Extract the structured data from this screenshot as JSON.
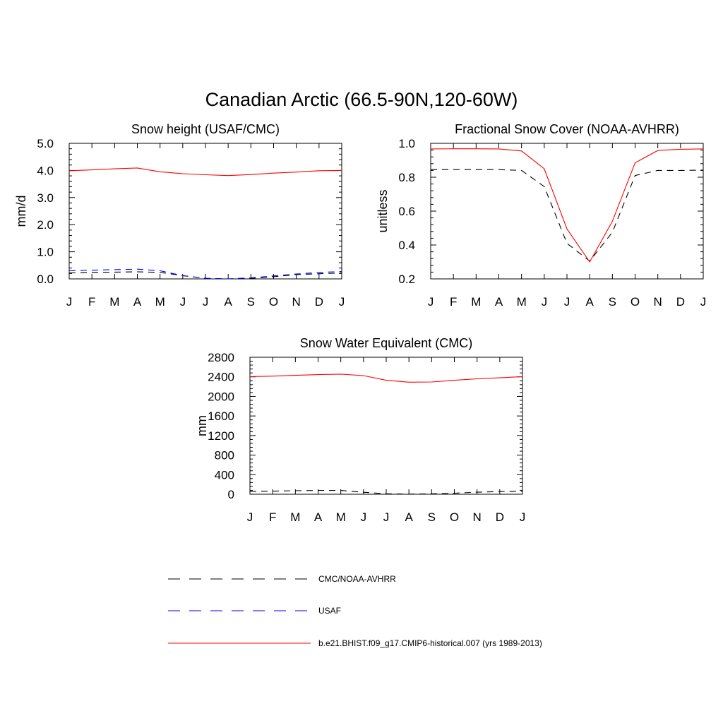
{
  "figure": {
    "title": "Canadian Arctic (66.5-90N,120-60W)"
  },
  "legend": {
    "items": [
      {
        "label": "CMC/NOAA-AVHRR",
        "color": "#000000",
        "style": "dashed"
      },
      {
        "label": "USAF",
        "color": "#0000ff",
        "style": "dashed"
      },
      {
        "label": "b.e21.BHIST.f09_g17.CMIP6-historical.007 (yrs 1989-2013)",
        "color": "#ff0000",
        "style": "solid"
      }
    ]
  },
  "chart_data": [
    {
      "type": "line",
      "title": "Snow height (USAF/CMC)",
      "xlabel": "",
      "ylabel": "mm/d",
      "categories": [
        "J",
        "F",
        "M",
        "A",
        "M",
        "J",
        "J",
        "A",
        "S",
        "O",
        "N",
        "D",
        "J"
      ],
      "ylim": [
        0,
        5
      ],
      "yticks": [
        0,
        1,
        2,
        3,
        4,
        5
      ],
      "ytick_labels": [
        "0.0",
        "1.0",
        "2.0",
        "3.0",
        "4.0",
        "5.0"
      ],
      "grid": false,
      "series": [
        {
          "name": "CMC/NOAA-AVHRR",
          "color": "#000000",
          "style": "dashed",
          "values": [
            0.22,
            0.24,
            0.25,
            0.26,
            0.24,
            0.12,
            0.02,
            0.0,
            0.02,
            0.08,
            0.16,
            0.19,
            0.22
          ]
        },
        {
          "name": "USAF",
          "color": "#0000ff",
          "style": "dashed",
          "values": [
            0.3,
            0.32,
            0.34,
            0.36,
            0.3,
            0.12,
            0.02,
            0.0,
            0.04,
            0.11,
            0.18,
            0.24,
            0.27
          ]
        },
        {
          "name": "b.e21.BHIST.f09_g17.CMIP6-historical.007 (yrs 1989-2013)",
          "color": "#ff0000",
          "style": "solid",
          "values": [
            3.99,
            4.02,
            4.06,
            4.09,
            3.95,
            3.88,
            3.84,
            3.81,
            3.85,
            3.9,
            3.94,
            3.99,
            4.0
          ]
        }
      ]
    },
    {
      "type": "line",
      "title": "Fractional Snow Cover (NOAA-AVHRR)",
      "xlabel": "",
      "ylabel": "unitless",
      "categories": [
        "J",
        "F",
        "M",
        "A",
        "M",
        "J",
        "J",
        "A",
        "S",
        "O",
        "N",
        "D",
        "J"
      ],
      "ylim": [
        0.2,
        1.0
      ],
      "yticks": [
        0.2,
        0.4,
        0.6,
        0.8,
        1.0
      ],
      "ytick_labels": [
        "0.2",
        "0.4",
        "0.6",
        "0.8",
        "1.0"
      ],
      "grid": false,
      "series": [
        {
          "name": "CMC/NOAA-AVHRR",
          "color": "#000000",
          "style": "dashed",
          "values": [
            0.845,
            0.845,
            0.845,
            0.845,
            0.84,
            0.745,
            0.41,
            0.305,
            0.475,
            0.81,
            0.84,
            0.84,
            0.842
          ]
        },
        {
          "name": "b.e21.BHIST.f09_g17.CMIP6-historical.007 (yrs 1989-2013)",
          "color": "#ff0000",
          "style": "solid",
          "values": [
            0.967,
            0.968,
            0.968,
            0.967,
            0.955,
            0.85,
            0.495,
            0.3,
            0.54,
            0.885,
            0.958,
            0.965,
            0.967
          ]
        }
      ]
    },
    {
      "type": "line",
      "title": "Snow Water Equivalent (CMC)",
      "xlabel": "",
      "ylabel": "mm",
      "categories": [
        "J",
        "F",
        "M",
        "A",
        "M",
        "J",
        "J",
        "A",
        "S",
        "O",
        "N",
        "D",
        "J"
      ],
      "ylim": [
        0,
        2800
      ],
      "yticks": [
        0,
        400,
        800,
        1200,
        1600,
        2000,
        2400,
        2800
      ],
      "ytick_labels": [
        "0",
        "400",
        "800",
        "1200",
        "1600",
        "2000",
        "2400",
        "2800"
      ],
      "grid": false,
      "series": [
        {
          "name": "CMC/NOAA-AVHRR",
          "color": "#000000",
          "style": "dashed",
          "values": [
            58,
            64,
            72,
            78,
            78,
            40,
            10,
            3,
            8,
            22,
            42,
            55,
            60
          ]
        },
        {
          "name": "b.e21.BHIST.f09_g17.CMIP6-historical.007 (yrs 1989-2013)",
          "color": "#ff0000",
          "style": "solid",
          "values": [
            2405,
            2415,
            2430,
            2445,
            2455,
            2425,
            2330,
            2290,
            2295,
            2330,
            2360,
            2380,
            2405
          ]
        }
      ]
    }
  ]
}
